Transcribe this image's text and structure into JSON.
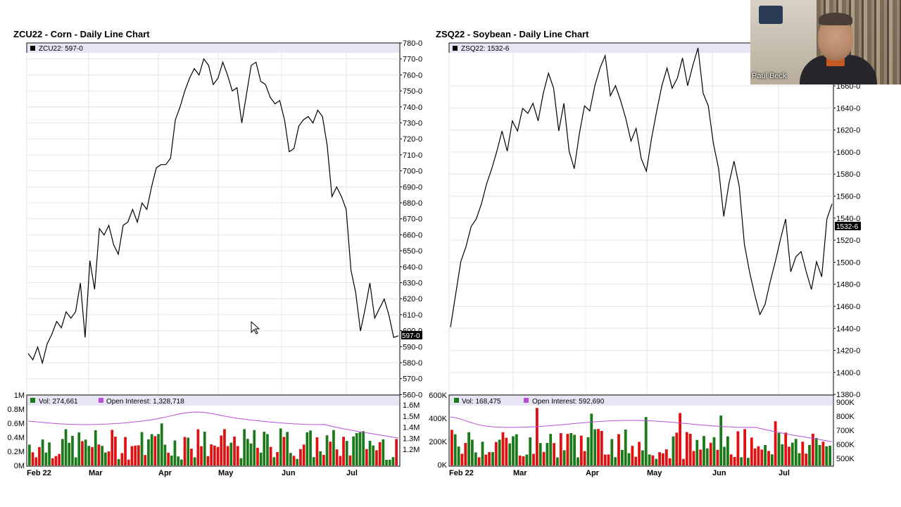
{
  "charts": [
    {
      "title": "ZCU22 - Corn - Daily Line Chart",
      "legend": "ZCU22: 597-0",
      "last_price_label": "597-0",
      "price_ticks": [
        "780-0",
        "770-0",
        "760-0",
        "750-0",
        "740-0",
        "730-0",
        "720-0",
        "710-0",
        "700-0",
        "690-0",
        "680-0",
        "670-0",
        "660-0",
        "650-0",
        "640-0",
        "630-0",
        "620-0",
        "610-0",
        "600-0",
        "590-0",
        "580-0",
        "570-0",
        "560-0"
      ],
      "vol_label": "Vol: 274,661",
      "oi_label": "Open Interest: 1,328,718",
      "vol_ticks": [
        "1M",
        "0.8M",
        "0.6M",
        "0.4M",
        "0.2M",
        "0M"
      ],
      "oi_ticks": [
        "1.6M",
        "1.5M",
        "1.4M",
        "1.3M",
        "1.2M"
      ],
      "months": [
        "Feb 22",
        "Mar",
        "Apr",
        "May",
        "Jun",
        "Jul"
      ]
    },
    {
      "title": "ZSQ22 - Soybean - Daily Line Chart",
      "legend": "ZSQ22: 1532-6",
      "last_price_label": "1532-6",
      "price_ticks": [
        "1660-0",
        "1640-0",
        "1620-0",
        "1600-0",
        "1580-0",
        "1560-0",
        "1540-0",
        "1520-0",
        "1500-0",
        "1480-0",
        "1460-0",
        "1440-0",
        "1420-0",
        "1400-0",
        "1380-0"
      ],
      "vol_label": "Vol: 168,475",
      "oi_label": "Open Interest: 592,690",
      "vol_ticks": [
        "600K",
        "400K",
        "200K",
        "0K"
      ],
      "oi_ticks": [
        "900K",
        "800K",
        "700K",
        "600K",
        "500K"
      ],
      "months": [
        "Feb 22",
        "Mar",
        "Apr",
        "May",
        "Jun",
        "Jul"
      ]
    }
  ],
  "webcam": {
    "name": "Paul Beck"
  },
  "chart_data": [
    {
      "type": "line",
      "title": "ZCU22 - Corn - Daily Line Chart",
      "x_range": [
        "Feb 22",
        "Jul"
      ],
      "ylim": [
        560,
        780
      ],
      "series": [
        {
          "name": "ZCU22",
          "values": [
            586,
            582,
            590,
            580,
            592,
            598,
            606,
            602,
            612,
            608,
            612,
            630,
            596,
            644,
            626,
            664,
            660,
            666,
            654,
            648,
            666,
            668,
            676,
            668,
            680,
            676,
            690,
            702,
            704,
            704,
            708,
            732,
            740,
            750,
            758,
            764,
            760,
            770,
            766,
            754,
            758,
            768,
            760,
            750,
            752,
            730,
            748,
            766,
            768,
            756,
            754,
            746,
            742,
            744,
            732,
            712,
            714,
            728,
            732,
            734,
            730,
            738,
            734,
            716,
            684,
            690,
            684,
            676,
            638,
            624,
            600,
            614,
            630,
            608,
            614,
            620,
            610,
            596,
            597
          ]
        }
      ],
      "colors": {
        "line": "#000000",
        "up_volume": "#1a7a1a",
        "down_volume": "#e01010",
        "open_interest": "#b94fd6"
      }
    },
    {
      "type": "line",
      "title": "ZSQ22 - Soybean - Daily Line Chart",
      "x_range": [
        "Feb 22",
        "Jul"
      ],
      "ylim": [
        1380,
        1660
      ],
      "series": [
        {
          "name": "ZSQ22",
          "values": [
            1434,
            1460,
            1486,
            1498,
            1514,
            1520,
            1532,
            1548,
            1560,
            1574,
            1590,
            1574,
            1598,
            1590,
            1608,
            1604,
            1612,
            1598,
            1620,
            1636,
            1624,
            1590,
            1612,
            1574,
            1560,
            1588,
            1610,
            1606,
            1626,
            1640,
            1650,
            1618,
            1626,
            1614,
            1600,
            1582,
            1592,
            1568,
            1558,
            1584,
            1606,
            1626,
            1640,
            1624,
            1632,
            1648,
            1626,
            1642,
            1656,
            1620,
            1610,
            1580,
            1560,
            1522,
            1548,
            1566,
            1546,
            1500,
            1478,
            1460,
            1444,
            1452,
            1470,
            1486,
            1504,
            1520,
            1478,
            1490,
            1494,
            1478,
            1464,
            1486,
            1474,
            1520,
            1532
          ]
        }
      ]
    }
  ]
}
